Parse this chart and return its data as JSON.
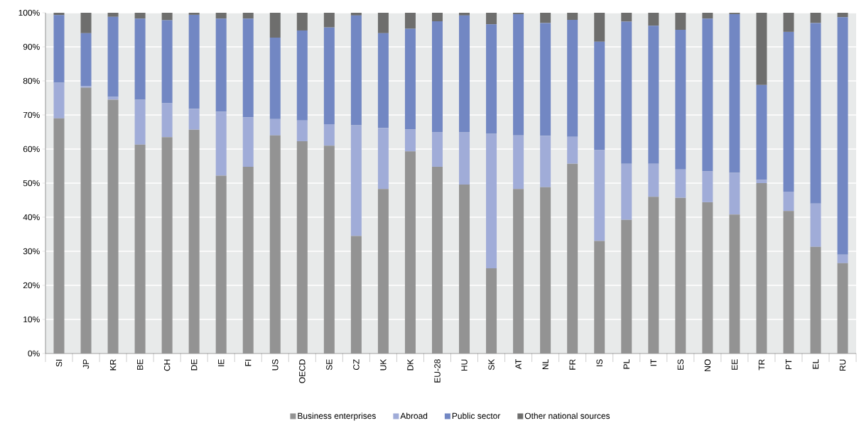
{
  "chart_data": {
    "type": "bar",
    "stacked": true,
    "categories": [
      "SI",
      "JP",
      "KR",
      "BE",
      "CH",
      "DE",
      "IE",
      "FI",
      "US",
      "OECD",
      "SE",
      "CZ",
      "UK",
      "DK",
      "EU-28",
      "HU",
      "SK",
      "AT",
      "NL",
      "FR",
      "IS",
      "PL",
      "IT",
      "ES",
      "NO",
      "EE",
      "TR",
      "PT",
      "EL",
      "RU"
    ],
    "series": [
      {
        "name": "Business enterprises",
        "color": "#939393",
        "values": [
          69,
          78,
          74.5,
          61.3,
          63.5,
          65.7,
          52.2,
          54.8,
          64,
          62.3,
          61,
          34.5,
          48.3,
          59.3,
          54.8,
          49.6,
          25,
          48.3,
          48.8,
          55.7,
          33,
          39.2,
          46,
          45.7,
          44.4,
          40.8,
          50,
          41.8,
          31.3,
          26.5
        ]
      },
      {
        "name": "Abroad",
        "color": "#a0acd8",
        "values": [
          10.5,
          0.5,
          0.8,
          13.2,
          10,
          6.1,
          18.8,
          14.5,
          4.8,
          6.1,
          6.3,
          32.5,
          17.9,
          6.5,
          10.1,
          15.3,
          39.5,
          15.7,
          15.1,
          7.9,
          26.7,
          16.5,
          9.7,
          8.3,
          9.1,
          12.2,
          1,
          5.7,
          12.7,
          2.5
        ]
      },
      {
        "name": "Public sector",
        "color": "#7287c3",
        "values": [
          19.8,
          15.5,
          23.5,
          23.8,
          24.3,
          27.6,
          27.3,
          29,
          23.9,
          26.4,
          28.4,
          32.2,
          27.8,
          29.5,
          32.6,
          34.3,
          32.1,
          35.6,
          33.1,
          34.3,
          31.8,
          41.7,
          40.5,
          41,
          44.8,
          46.6,
          27.8,
          46.9,
          53,
          69.7
        ]
      },
      {
        "name": "Other national sources",
        "color": "#6e6e6d",
        "values": [
          0.7,
          6,
          1.2,
          1.7,
          2.2,
          0.6,
          1.7,
          1.7,
          7.3,
          5.2,
          4.3,
          0.8,
          6,
          4.7,
          2.5,
          0.8,
          3.4,
          0.4,
          3,
          2.1,
          8.5,
          2.6,
          3.8,
          5,
          1.7,
          0.4,
          21.2,
          5.6,
          3,
          1.3
        ]
      }
    ],
    "ylim": [
      0,
      100
    ],
    "yticks": [
      {
        "value": 0,
        "label": "0%"
      },
      {
        "value": 10,
        "label": "10%"
      },
      {
        "value": 20,
        "label": "20%"
      },
      {
        "value": 30,
        "label": "30%"
      },
      {
        "value": 40,
        "label": "40%"
      },
      {
        "value": 50,
        "label": "50%"
      },
      {
        "value": 60,
        "label": "60%"
      },
      {
        "value": 70,
        "label": "70%"
      },
      {
        "value": 80,
        "label": "80%"
      },
      {
        "value": 90,
        "label": "90%"
      },
      {
        "value": 100,
        "label": "100%"
      }
    ],
    "grid": "y",
    "legend": "bottom"
  }
}
